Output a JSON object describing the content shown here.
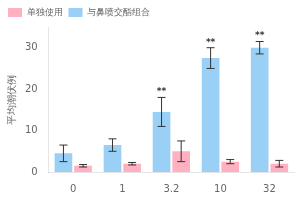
{
  "chart_data": {
    "type": "bar",
    "categories": [
      "0",
      "1",
      "3.2",
      "10",
      "32"
    ],
    "series": [
      {
        "name": "与鼻喷交酯组合",
        "values": [
          4.5,
          6.5,
          14.5,
          27.5,
          30.0
        ],
        "errors": [
          2.0,
          1.5,
          3.5,
          2.5,
          1.5
        ],
        "annotations": [
          null,
          null,
          "**",
          "**",
          "**"
        ]
      },
      {
        "name": "单独使用",
        "values": [
          1.5,
          2.0,
          5.0,
          2.5,
          2.0
        ],
        "errors": [
          0.3,
          0.3,
          2.5,
          0.5,
          0.8
        ]
      }
    ],
    "ylabel": "平均潮伏例",
    "ylim": [
      0,
      35
    ],
    "yticks": [
      0,
      10,
      20,
      30
    ],
    "grid": false,
    "legend": "upper left"
  }
}
